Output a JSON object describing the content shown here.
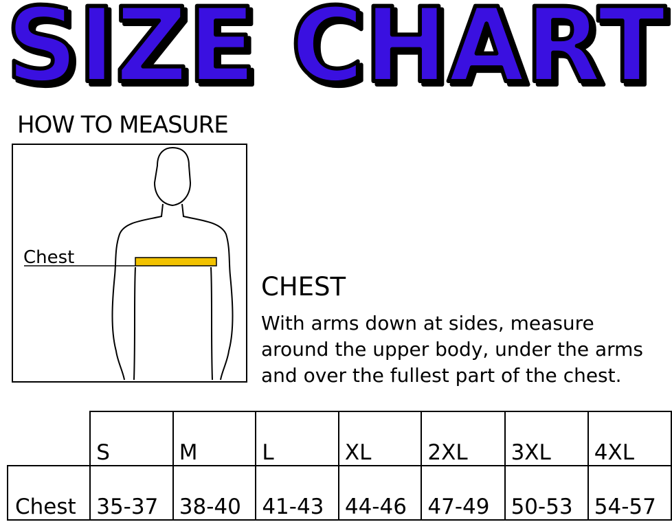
{
  "title": "SIZE CHART",
  "title_color": "#3a10e0",
  "how_to_measure": "HOW TO MEASURE",
  "figure": {
    "chest_label": "Chest",
    "tape_color": "#f2c200"
  },
  "chest_heading": "CHEST",
  "chest_lines": [
    "With arms down at sides, measure",
    "around the upper body, under the arms",
    "and over the fullest part of the chest."
  ],
  "table": {
    "sizes": [
      "S",
      "M",
      "L",
      "XL",
      "2XL",
      "3XL",
      "4XL"
    ],
    "row_label": "Chest",
    "values": [
      "35-37",
      "38-40",
      "41-43",
      "44-46",
      "47-49",
      "50-53",
      "54-57"
    ]
  }
}
